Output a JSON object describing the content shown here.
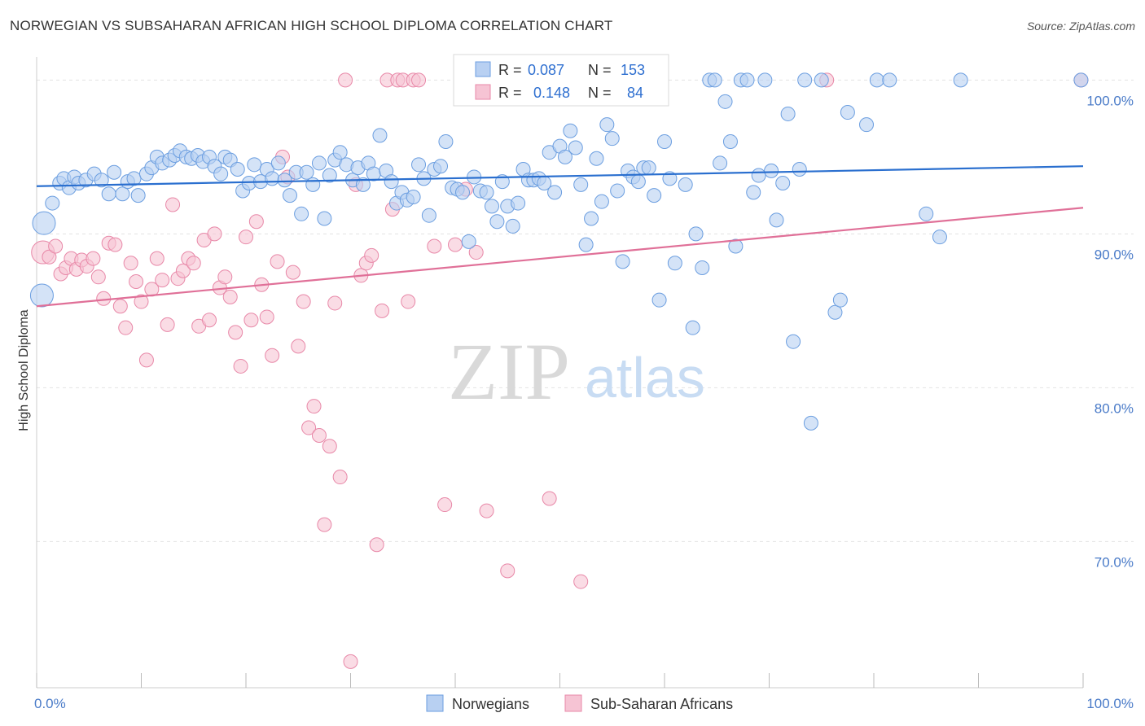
{
  "header": {
    "title": "NORWEGIAN VS SUBSAHARAN AFRICAN HIGH SCHOOL DIPLOMA CORRELATION CHART",
    "source": "Source: ZipAtlas.com"
  },
  "chart_data": {
    "type": "scatter",
    "ylabel": "High School Diploma",
    "xlim": [
      0,
      100
    ],
    "ylim": [
      60.5,
      101.5
    ],
    "x_ticks": [
      {
        "value": 0,
        "label": "0.0%"
      },
      {
        "value": 100,
        "label": "100.0%"
      }
    ],
    "y_ticks": [
      {
        "value": 70,
        "label": "70.0%"
      },
      {
        "value": 80,
        "label": "80.0%"
      },
      {
        "value": 90,
        "label": "90.0%"
      },
      {
        "value": 100,
        "label": "100.0%"
      }
    ],
    "grid": true,
    "legend_box": {
      "rows": [
        {
          "r_label": "R =",
          "r_value": "0.087",
          "n_label": "N =",
          "n_value": "153"
        },
        {
          "r_label": "R =",
          "r_value": "0.148",
          "n_label": "N =",
          "n_value": "84"
        }
      ]
    },
    "watermark": {
      "zip": "ZIP",
      "atlas": "atlas"
    },
    "series": [
      {
        "name": "Norwegians",
        "color": "#6b9ee0",
        "fill": "#b8d0f2",
        "trend": {
          "x": [
            0,
            100
          ],
          "y": [
            93.1,
            94.4
          ]
        },
        "points": [
          [
            0.5,
            86,
            "L"
          ],
          [
            0.7,
            90.7,
            "L"
          ],
          [
            1.5,
            92
          ],
          [
            2.2,
            93.3
          ],
          [
            2.6,
            93.6
          ],
          [
            3.1,
            93
          ],
          [
            3.6,
            93.7
          ],
          [
            4.0,
            93.3
          ],
          [
            4.7,
            93.5
          ],
          [
            5.5,
            93.9
          ],
          [
            6.2,
            93.5
          ],
          [
            6.9,
            92.6
          ],
          [
            7.4,
            94
          ],
          [
            8.2,
            92.6
          ],
          [
            8.7,
            93.4
          ],
          [
            9.3,
            93.6
          ],
          [
            9.7,
            92.5
          ],
          [
            10.5,
            93.9
          ],
          [
            11.0,
            94.3
          ],
          [
            11.5,
            95
          ],
          [
            12.0,
            94.6
          ],
          [
            12.7,
            94.8
          ],
          [
            13.2,
            95.1
          ],
          [
            13.7,
            95.4
          ],
          [
            14.3,
            95
          ],
          [
            14.8,
            94.9
          ],
          [
            15.4,
            95.1
          ],
          [
            15.9,
            94.7
          ],
          [
            16.5,
            95
          ],
          [
            17.0,
            94.4
          ],
          [
            17.6,
            93.9
          ],
          [
            18.0,
            95
          ],
          [
            18.5,
            94.8
          ],
          [
            19.2,
            94.2
          ],
          [
            19.7,
            92.8
          ],
          [
            20.3,
            93.3
          ],
          [
            20.8,
            94.5
          ],
          [
            21.4,
            93.4
          ],
          [
            22.0,
            94.2
          ],
          [
            22.5,
            93.6
          ],
          [
            23.1,
            94.6
          ],
          [
            23.7,
            93.5
          ],
          [
            24.2,
            92.5
          ],
          [
            24.8,
            94
          ],
          [
            25.3,
            91.3
          ],
          [
            25.8,
            94
          ],
          [
            26.4,
            93.2
          ],
          [
            27.0,
            94.6
          ],
          [
            27.5,
            91
          ],
          [
            28.0,
            93.8
          ],
          [
            28.5,
            94.8
          ],
          [
            29.0,
            95.3
          ],
          [
            29.6,
            94.5
          ],
          [
            30.2,
            93.5
          ],
          [
            30.7,
            94.3
          ],
          [
            31.2,
            93.2
          ],
          [
            31.7,
            94.6
          ],
          [
            32.2,
            93.9
          ],
          [
            32.8,
            96.4
          ],
          [
            33.4,
            94.1
          ],
          [
            33.9,
            93.4
          ],
          [
            34.4,
            92
          ],
          [
            34.9,
            92.7
          ],
          [
            35.4,
            92.2
          ],
          [
            36.0,
            92.4
          ],
          [
            36.5,
            94.5
          ],
          [
            37.0,
            93.6
          ],
          [
            37.5,
            91.2
          ],
          [
            38.0,
            94.2
          ],
          [
            38.6,
            94.4
          ],
          [
            39.1,
            96
          ],
          [
            39.7,
            93
          ],
          [
            40.2,
            92.9
          ],
          [
            40.7,
            92.7
          ],
          [
            41.3,
            89.5
          ],
          [
            41.8,
            93.7
          ],
          [
            42.4,
            92.8
          ],
          [
            43.0,
            92.7
          ],
          [
            43.5,
            91.8
          ],
          [
            44.0,
            90.8
          ],
          [
            44.5,
            93.4
          ],
          [
            45.0,
            91.8
          ],
          [
            45.5,
            90.5
          ],
          [
            46.0,
            92
          ],
          [
            46.5,
            94.2
          ],
          [
            47.0,
            93.5
          ],
          [
            47.5,
            93.5
          ],
          [
            48.0,
            93.6
          ],
          [
            48.5,
            93.3
          ],
          [
            49.0,
            95.3
          ],
          [
            49.5,
            92.7
          ],
          [
            50.0,
            95.7
          ],
          [
            50.5,
            95
          ],
          [
            51.0,
            96.7
          ],
          [
            51.5,
            95.6
          ],
          [
            52.0,
            93.2
          ],
          [
            52.5,
            89.3
          ],
          [
            53.0,
            91
          ],
          [
            53.5,
            94.9
          ],
          [
            54.0,
            92.1
          ],
          [
            54.5,
            97.1
          ],
          [
            55.0,
            96.2
          ],
          [
            55.5,
            92.8
          ],
          [
            56.0,
            88.2
          ],
          [
            56.5,
            94.1
          ],
          [
            57.0,
            93.7
          ],
          [
            57.5,
            93.4
          ],
          [
            58.0,
            94.3
          ],
          [
            58.5,
            94.3
          ],
          [
            59.0,
            92.5
          ],
          [
            59.5,
            85.7
          ],
          [
            60.0,
            96
          ],
          [
            60.5,
            93.6
          ],
          [
            61.0,
            88.1
          ],
          [
            62.0,
            93.2
          ],
          [
            62.7,
            83.9
          ],
          [
            63.0,
            90
          ],
          [
            63.6,
            87.8
          ],
          [
            64.3,
            100
          ],
          [
            64.8,
            100
          ],
          [
            65.3,
            94.6
          ],
          [
            65.8,
            98.6
          ],
          [
            66.3,
            96
          ],
          [
            66.8,
            89.2
          ],
          [
            67.3,
            100
          ],
          [
            67.9,
            100
          ],
          [
            68.5,
            92.7
          ],
          [
            69.0,
            93.8
          ],
          [
            69.6,
            100
          ],
          [
            70.2,
            94.1
          ],
          [
            70.7,
            90.9
          ],
          [
            71.3,
            93.3
          ],
          [
            71.8,
            97.8
          ],
          [
            72.3,
            83
          ],
          [
            72.9,
            94.2
          ],
          [
            73.4,
            100
          ],
          [
            74.0,
            77.7
          ],
          [
            75.0,
            100
          ],
          [
            76.3,
            84.9
          ],
          [
            76.8,
            85.7
          ],
          [
            77.5,
            97.9
          ],
          [
            79.3,
            97.1
          ],
          [
            80.3,
            100
          ],
          [
            81.5,
            100
          ],
          [
            85.0,
            91.3
          ],
          [
            86.3,
            89.8
          ],
          [
            88.3,
            100
          ],
          [
            99.8,
            100
          ]
        ]
      },
      {
        "name": "Sub-Saharan Africans",
        "color": "#e888a8",
        "fill": "#f6c4d4",
        "trend": {
          "x": [
            0,
            100
          ],
          "y": [
            85.3,
            91.7
          ]
        },
        "points": [
          [
            0.6,
            88.8,
            "L"
          ],
          [
            1.2,
            88.5
          ],
          [
            1.8,
            89.2
          ],
          [
            2.3,
            87.4
          ],
          [
            2.8,
            87.8
          ],
          [
            3.3,
            88.4
          ],
          [
            3.8,
            87.7
          ],
          [
            4.3,
            88.3
          ],
          [
            4.8,
            87.9
          ],
          [
            5.4,
            88.4
          ],
          [
            5.9,
            87.2
          ],
          [
            6.4,
            85.8
          ],
          [
            6.9,
            89.4
          ],
          [
            7.5,
            89.3
          ],
          [
            8.0,
            85.3
          ],
          [
            8.5,
            83.9
          ],
          [
            9.0,
            88.1
          ],
          [
            9.5,
            86.9
          ],
          [
            10.0,
            85.6
          ],
          [
            10.5,
            81.8
          ],
          [
            11.0,
            86.4
          ],
          [
            11.5,
            88.4
          ],
          [
            12.0,
            87
          ],
          [
            12.5,
            84.1
          ],
          [
            13.0,
            91.9
          ],
          [
            13.5,
            87.1
          ],
          [
            14.0,
            87.6
          ],
          [
            14.5,
            88.4
          ],
          [
            15.0,
            88.1
          ],
          [
            15.5,
            84
          ],
          [
            16.0,
            89.6
          ],
          [
            16.5,
            84.4
          ],
          [
            17.0,
            90
          ],
          [
            17.5,
            86.5
          ],
          [
            18.0,
            87.2
          ],
          [
            18.5,
            85.9
          ],
          [
            19.0,
            83.6
          ],
          [
            19.5,
            81.4
          ],
          [
            20.0,
            89.8
          ],
          [
            20.5,
            84.4
          ],
          [
            21.0,
            90.8
          ],
          [
            21.5,
            86.7
          ],
          [
            22.0,
            84.6
          ],
          [
            22.5,
            82.1
          ],
          [
            23.0,
            88.2
          ],
          [
            23.5,
            95
          ],
          [
            24.0,
            93.7
          ],
          [
            24.5,
            87.5
          ],
          [
            25.0,
            82.7
          ],
          [
            25.5,
            85.6
          ],
          [
            26.0,
            77.4
          ],
          [
            26.5,
            78.8
          ],
          [
            27.0,
            76.9
          ],
          [
            27.5,
            71.1
          ],
          [
            28.0,
            76.2
          ],
          [
            28.5,
            85.5
          ],
          [
            29.0,
            74.2
          ],
          [
            29.5,
            100
          ],
          [
            30.0,
            62.2
          ],
          [
            30.5,
            93.2
          ],
          [
            31.0,
            87.3
          ],
          [
            31.5,
            88.1
          ],
          [
            32.0,
            88.6
          ],
          [
            32.5,
            69.8
          ],
          [
            33.0,
            85
          ],
          [
            33.5,
            100
          ],
          [
            34.0,
            91.6
          ],
          [
            34.5,
            100
          ],
          [
            35.0,
            100
          ],
          [
            35.5,
            85.6
          ],
          [
            36.0,
            100
          ],
          [
            36.5,
            100
          ],
          [
            38.0,
            89.2
          ],
          [
            39.0,
            72.4
          ],
          [
            40.0,
            89.3
          ],
          [
            41.0,
            92.9
          ],
          [
            42.0,
            88.8
          ],
          [
            43.0,
            72
          ],
          [
            45.0,
            68.1
          ],
          [
            46.0,
            100
          ],
          [
            49.0,
            72.8
          ],
          [
            52.0,
            67.4
          ],
          [
            75.5,
            100
          ],
          [
            99.8,
            100
          ]
        ]
      }
    ]
  },
  "bottom_legend": {
    "items": [
      {
        "label": "Norwegians"
      },
      {
        "label": "Sub-Saharan Africans"
      }
    ]
  }
}
